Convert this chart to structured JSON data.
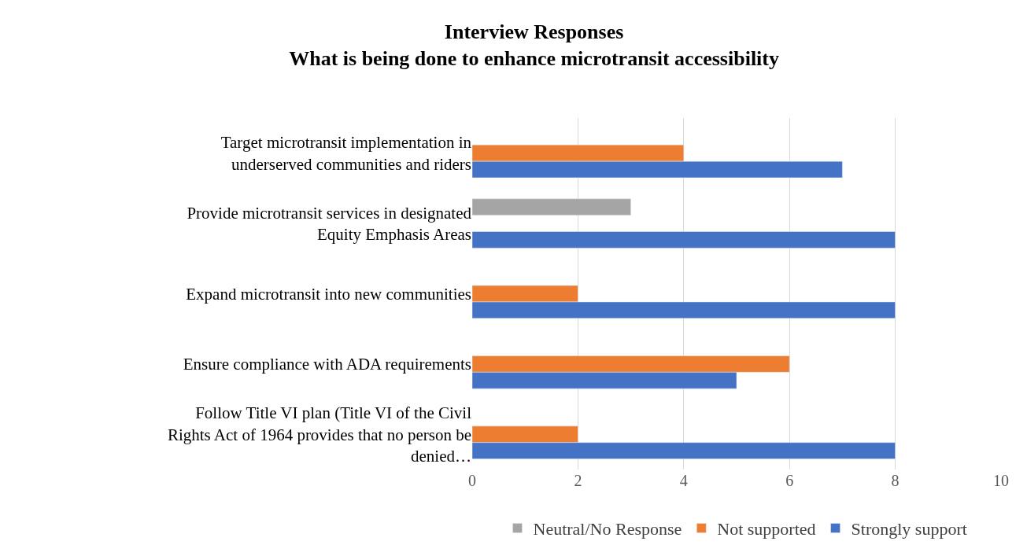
{
  "chart_data": {
    "type": "bar",
    "orientation": "horizontal",
    "title": "Interview Responses\nWhat is being done to enhance microtransit accessibility",
    "categories": [
      "Target microtransit implementation in underserved communities and riders",
      "Provide microtransit services in designated Equity Emphasis Areas",
      "Expand microtransit into new communities",
      "Ensure compliance with ADA requirements",
      "Follow Title VI plan (Title VI of the Civil Rights Act of 1964 provides that no person be denied…"
    ],
    "series": [
      {
        "name": "Neutral/No Response",
        "color": "#a5a5a5",
        "values": [
          null,
          3,
          null,
          null,
          null
        ]
      },
      {
        "name": "Not supported",
        "color": "#ed7d31",
        "values": [
          4,
          null,
          2,
          6,
          2
        ]
      },
      {
        "name": "Strongly support",
        "color": "#4472c4",
        "values": [
          7,
          8,
          8,
          5,
          8
        ]
      }
    ],
    "xlim": [
      0,
      10
    ],
    "xticks": [
      0,
      2,
      4,
      6,
      8,
      10
    ],
    "grid": "x",
    "legend": "bottom"
  }
}
